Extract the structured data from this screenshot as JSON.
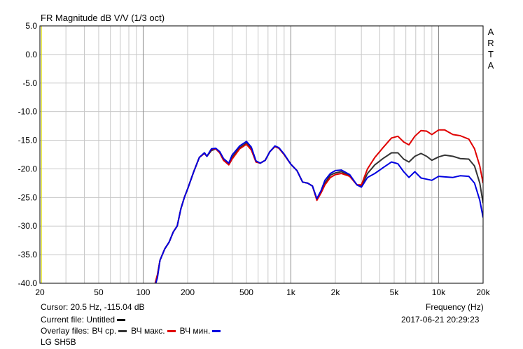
{
  "chart_data": {
    "type": "line",
    "title": "FR Magnitude dB V/V (1/3 oct)",
    "xlabel": "Frequency (Hz)",
    "ylabel": "",
    "xscale": "log",
    "xlim": [
      20,
      20000
    ],
    "ylim": [
      -40,
      5
    ],
    "grid": true,
    "x_tick_labels": [
      "20",
      "50",
      "100",
      "200",
      "500",
      "1k",
      "2k",
      "5k",
      "10k",
      "20k"
    ],
    "x_tick_values": [
      20,
      50,
      100,
      200,
      500,
      1000,
      2000,
      5000,
      10000,
      20000
    ],
    "y_tick_labels": [
      "5.0",
      "0.0",
      "-5.0",
      "-10.0",
      "-15.0",
      "-20.0",
      "-25.0",
      "-30.0",
      "-35.0",
      "-40.0"
    ],
    "y_tick_values": [
      5,
      0,
      -5,
      -10,
      -15,
      -20,
      -25,
      -30,
      -35,
      -40
    ],
    "watermark": "ARTA",
    "series": [
      {
        "name": "ВЧ ср.",
        "color": "#333333",
        "points": [
          [
            115,
            -41
          ],
          [
            120,
            -40.2
          ],
          [
            125,
            -38.5
          ],
          [
            130,
            -36
          ],
          [
            140,
            -34
          ],
          [
            150,
            -32.8
          ],
          [
            160,
            -31
          ],
          [
            170,
            -30
          ],
          [
            180,
            -27
          ],
          [
            190,
            -25
          ],
          [
            200,
            -23.5
          ],
          [
            220,
            -20.5
          ],
          [
            240,
            -18
          ],
          [
            260,
            -17.2
          ],
          [
            270,
            -17.8
          ],
          [
            290,
            -16.8
          ],
          [
            310,
            -16.5
          ],
          [
            330,
            -17.2
          ],
          [
            350,
            -18.5
          ],
          [
            380,
            -19.2
          ],
          [
            400,
            -18
          ],
          [
            450,
            -16.3
          ],
          [
            500,
            -15.5
          ],
          [
            540,
            -16.5
          ],
          [
            580,
            -18.7
          ],
          [
            620,
            -19
          ],
          [
            670,
            -18.5
          ],
          [
            720,
            -17
          ],
          [
            780,
            -16.1
          ],
          [
            830,
            -16.4
          ],
          [
            900,
            -17.5
          ],
          [
            1000,
            -19.2
          ],
          [
            1100,
            -20.3
          ],
          [
            1200,
            -22.3
          ],
          [
            1300,
            -22.5
          ],
          [
            1400,
            -23
          ],
          [
            1500,
            -25.4
          ],
          [
            1600,
            -24
          ],
          [
            1700,
            -22.5
          ],
          [
            1850,
            -21.1
          ],
          [
            2000,
            -20.7
          ],
          [
            2200,
            -20.5
          ],
          [
            2500,
            -21.2
          ],
          [
            2800,
            -22.8
          ],
          [
            3000,
            -23
          ],
          [
            3300,
            -20.8
          ],
          [
            3700,
            -19.3
          ],
          [
            4200,
            -18.2
          ],
          [
            4800,
            -17.2
          ],
          [
            5300,
            -17.2
          ],
          [
            5800,
            -18.3
          ],
          [
            6300,
            -18.8
          ],
          [
            6900,
            -17.8
          ],
          [
            7600,
            -17.3
          ],
          [
            8300,
            -17.8
          ],
          [
            9000,
            -18.5
          ],
          [
            10000,
            -17.9
          ],
          [
            11000,
            -17.6
          ],
          [
            12500,
            -17.8
          ],
          [
            14000,
            -18.2
          ],
          [
            16000,
            -18.3
          ],
          [
            17500,
            -19.5
          ],
          [
            19000,
            -22.5
          ],
          [
            20000,
            -26
          ]
        ]
      },
      {
        "name": "ВЧ макс.",
        "color": "#e00000",
        "points": [
          [
            115,
            -41
          ],
          [
            120,
            -40.2
          ],
          [
            125,
            -38.5
          ],
          [
            130,
            -36
          ],
          [
            140,
            -34
          ],
          [
            150,
            -32.8
          ],
          [
            160,
            -31
          ],
          [
            170,
            -30
          ],
          [
            180,
            -27
          ],
          [
            190,
            -25
          ],
          [
            200,
            -23.5
          ],
          [
            220,
            -20.5
          ],
          [
            240,
            -18
          ],
          [
            260,
            -17.3
          ],
          [
            270,
            -17.8
          ],
          [
            290,
            -16.6
          ],
          [
            310,
            -16.5
          ],
          [
            330,
            -17.2
          ],
          [
            350,
            -18.5
          ],
          [
            380,
            -19.3
          ],
          [
            400,
            -18.3
          ],
          [
            450,
            -16.5
          ],
          [
            500,
            -15.7
          ],
          [
            540,
            -16.7
          ],
          [
            580,
            -18.8
          ],
          [
            620,
            -19
          ],
          [
            670,
            -18.5
          ],
          [
            720,
            -17
          ],
          [
            780,
            -16.1
          ],
          [
            830,
            -16.4
          ],
          [
            900,
            -17.5
          ],
          [
            1000,
            -19.2
          ],
          [
            1100,
            -20.3
          ],
          [
            1200,
            -22.3
          ],
          [
            1300,
            -22.5
          ],
          [
            1400,
            -23
          ],
          [
            1500,
            -25.5
          ],
          [
            1600,
            -24.2
          ],
          [
            1700,
            -22.8
          ],
          [
            1850,
            -21.5
          ],
          [
            2000,
            -21
          ],
          [
            2200,
            -20.8
          ],
          [
            2500,
            -21.3
          ],
          [
            2800,
            -22.8
          ],
          [
            3000,
            -22.8
          ],
          [
            3300,
            -20
          ],
          [
            3700,
            -18
          ],
          [
            4200,
            -16.3
          ],
          [
            4800,
            -14.6
          ],
          [
            5300,
            -14.3
          ],
          [
            5800,
            -15.3
          ],
          [
            6300,
            -15.8
          ],
          [
            6900,
            -14.3
          ],
          [
            7600,
            -13.3
          ],
          [
            8300,
            -13.4
          ],
          [
            9000,
            -14
          ],
          [
            10000,
            -13.2
          ],
          [
            11000,
            -13.2
          ],
          [
            12500,
            -14
          ],
          [
            14000,
            -14.2
          ],
          [
            16000,
            -14.8
          ],
          [
            17500,
            -16.5
          ],
          [
            19000,
            -19.5
          ],
          [
            20000,
            -22.5
          ]
        ]
      },
      {
        "name": "ВЧ мин.",
        "color": "#0000e0",
        "points": [
          [
            115,
            -41
          ],
          [
            120,
            -40.6
          ],
          [
            125,
            -39
          ],
          [
            130,
            -36
          ],
          [
            140,
            -34
          ],
          [
            150,
            -32.8
          ],
          [
            160,
            -31
          ],
          [
            170,
            -30
          ],
          [
            180,
            -27
          ],
          [
            190,
            -25
          ],
          [
            200,
            -23.5
          ],
          [
            220,
            -20.5
          ],
          [
            240,
            -18
          ],
          [
            260,
            -17.2
          ],
          [
            270,
            -17.8
          ],
          [
            290,
            -16.5
          ],
          [
            310,
            -16.4
          ],
          [
            330,
            -17
          ],
          [
            350,
            -18.2
          ],
          [
            380,
            -19
          ],
          [
            400,
            -17.6
          ],
          [
            450,
            -16
          ],
          [
            500,
            -15.2
          ],
          [
            540,
            -16.2
          ],
          [
            580,
            -18.6
          ],
          [
            620,
            -19
          ],
          [
            670,
            -18.5
          ],
          [
            720,
            -17
          ],
          [
            780,
            -16
          ],
          [
            830,
            -16.3
          ],
          [
            900,
            -17.4
          ],
          [
            1000,
            -19.2
          ],
          [
            1100,
            -20.3
          ],
          [
            1200,
            -22.3
          ],
          [
            1300,
            -22.5
          ],
          [
            1400,
            -23
          ],
          [
            1500,
            -25.2
          ],
          [
            1600,
            -23.8
          ],
          [
            1700,
            -22
          ],
          [
            1850,
            -20.8
          ],
          [
            2000,
            -20.3
          ],
          [
            2200,
            -20.2
          ],
          [
            2500,
            -21
          ],
          [
            2800,
            -22.8
          ],
          [
            3000,
            -23.2
          ],
          [
            3300,
            -21.5
          ],
          [
            3700,
            -20.8
          ],
          [
            4200,
            -19.8
          ],
          [
            4800,
            -18.8
          ],
          [
            5300,
            -19.1
          ],
          [
            5800,
            -20.5
          ],
          [
            6300,
            -21.5
          ],
          [
            6900,
            -20.5
          ],
          [
            7600,
            -21.6
          ],
          [
            8300,
            -21.8
          ],
          [
            9000,
            -22
          ],
          [
            10000,
            -21.3
          ],
          [
            11000,
            -21.4
          ],
          [
            12500,
            -21.5
          ],
          [
            14000,
            -21.2
          ],
          [
            16000,
            -21.3
          ],
          [
            17500,
            -22.5
          ],
          [
            19000,
            -25.5
          ],
          [
            20000,
            -28.5
          ]
        ]
      }
    ]
  },
  "footer": {
    "cursor": "Cursor: 20.5 Hz, -115.04 dB",
    "frequency_label": "Frequency (Hz)",
    "current_file_label": "Current file: Untitled",
    "datetime": "2017-06-21  20:29:23",
    "overlay_label": "Overlay files:",
    "overlay_items": [
      "ВЧ ср.",
      "ВЧ макс.",
      "ВЧ мин."
    ],
    "model": "LG SH5B"
  },
  "colors": {
    "current_file_swatch": "#000000",
    "cursor_line": "#e0e000"
  }
}
